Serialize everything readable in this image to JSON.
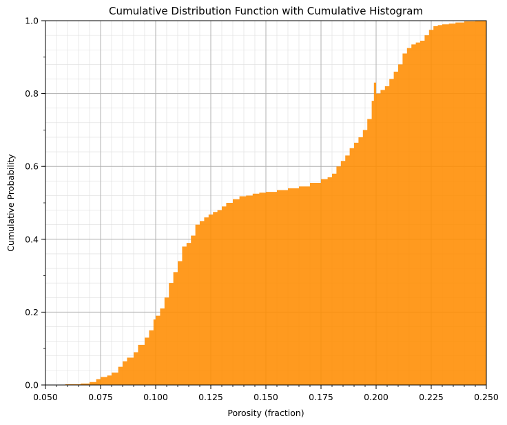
{
  "chart_data": {
    "type": "area",
    "title": "Cumulative Distribution Function with Cumulative Histogram",
    "xlabel": "Porosity (fraction)",
    "ylabel": "Cumulative Probability",
    "xlim": [
      0.05,
      0.25
    ],
    "ylim": [
      0.0,
      1.0
    ],
    "x_ticks": [
      "0.050",
      "0.075",
      "0.100",
      "0.125",
      "0.150",
      "0.175",
      "0.200",
      "0.225",
      "0.250"
    ],
    "y_ticks": [
      "0.0",
      "0.2",
      "0.4",
      "0.6",
      "0.8",
      "1.0"
    ],
    "grid": {
      "major": true,
      "minor": true
    },
    "fill_color": "#ff8c00",
    "series": [
      {
        "x": [
          0.059,
          0.066,
          0.07,
          0.073,
          0.075,
          0.078,
          0.08,
          0.083,
          0.085,
          0.087,
          0.09,
          0.092,
          0.095,
          0.097,
          0.099,
          0.1,
          0.102,
          0.104,
          0.106,
          0.108,
          0.11,
          0.112,
          0.114,
          0.116,
          0.118,
          0.12,
          0.122,
          0.124,
          0.126,
          0.128,
          0.13,
          0.132,
          0.135,
          0.138,
          0.141,
          0.144,
          0.147,
          0.15,
          0.155,
          0.16,
          0.165,
          0.17,
          0.175,
          0.178,
          0.18,
          0.182,
          0.184,
          0.186,
          0.188,
          0.19,
          0.192,
          0.194,
          0.196,
          0.198,
          0.199,
          0.2,
          0.202,
          0.204,
          0.206,
          0.208,
          0.21,
          0.212,
          0.214,
          0.216,
          0.218,
          0.22,
          0.222,
          0.224,
          0.226,
          0.228,
          0.23,
          0.233,
          0.236,
          0.24,
          0.245,
          0.25
        ],
        "y": [
          0.002,
          0.004,
          0.008,
          0.016,
          0.022,
          0.026,
          0.034,
          0.05,
          0.065,
          0.075,
          0.09,
          0.11,
          0.13,
          0.15,
          0.18,
          0.19,
          0.21,
          0.24,
          0.28,
          0.31,
          0.34,
          0.38,
          0.39,
          0.41,
          0.44,
          0.45,
          0.46,
          0.468,
          0.475,
          0.48,
          0.49,
          0.5,
          0.51,
          0.518,
          0.52,
          0.525,
          0.528,
          0.53,
          0.535,
          0.54,
          0.545,
          0.555,
          0.565,
          0.57,
          0.58,
          0.6,
          0.615,
          0.63,
          0.65,
          0.665,
          0.68,
          0.7,
          0.73,
          0.78,
          0.83,
          0.8,
          0.81,
          0.82,
          0.84,
          0.86,
          0.88,
          0.91,
          0.925,
          0.935,
          0.94,
          0.945,
          0.96,
          0.975,
          0.985,
          0.988,
          0.99,
          0.992,
          0.995,
          0.998,
          1.0,
          1.0
        ]
      }
    ]
  }
}
